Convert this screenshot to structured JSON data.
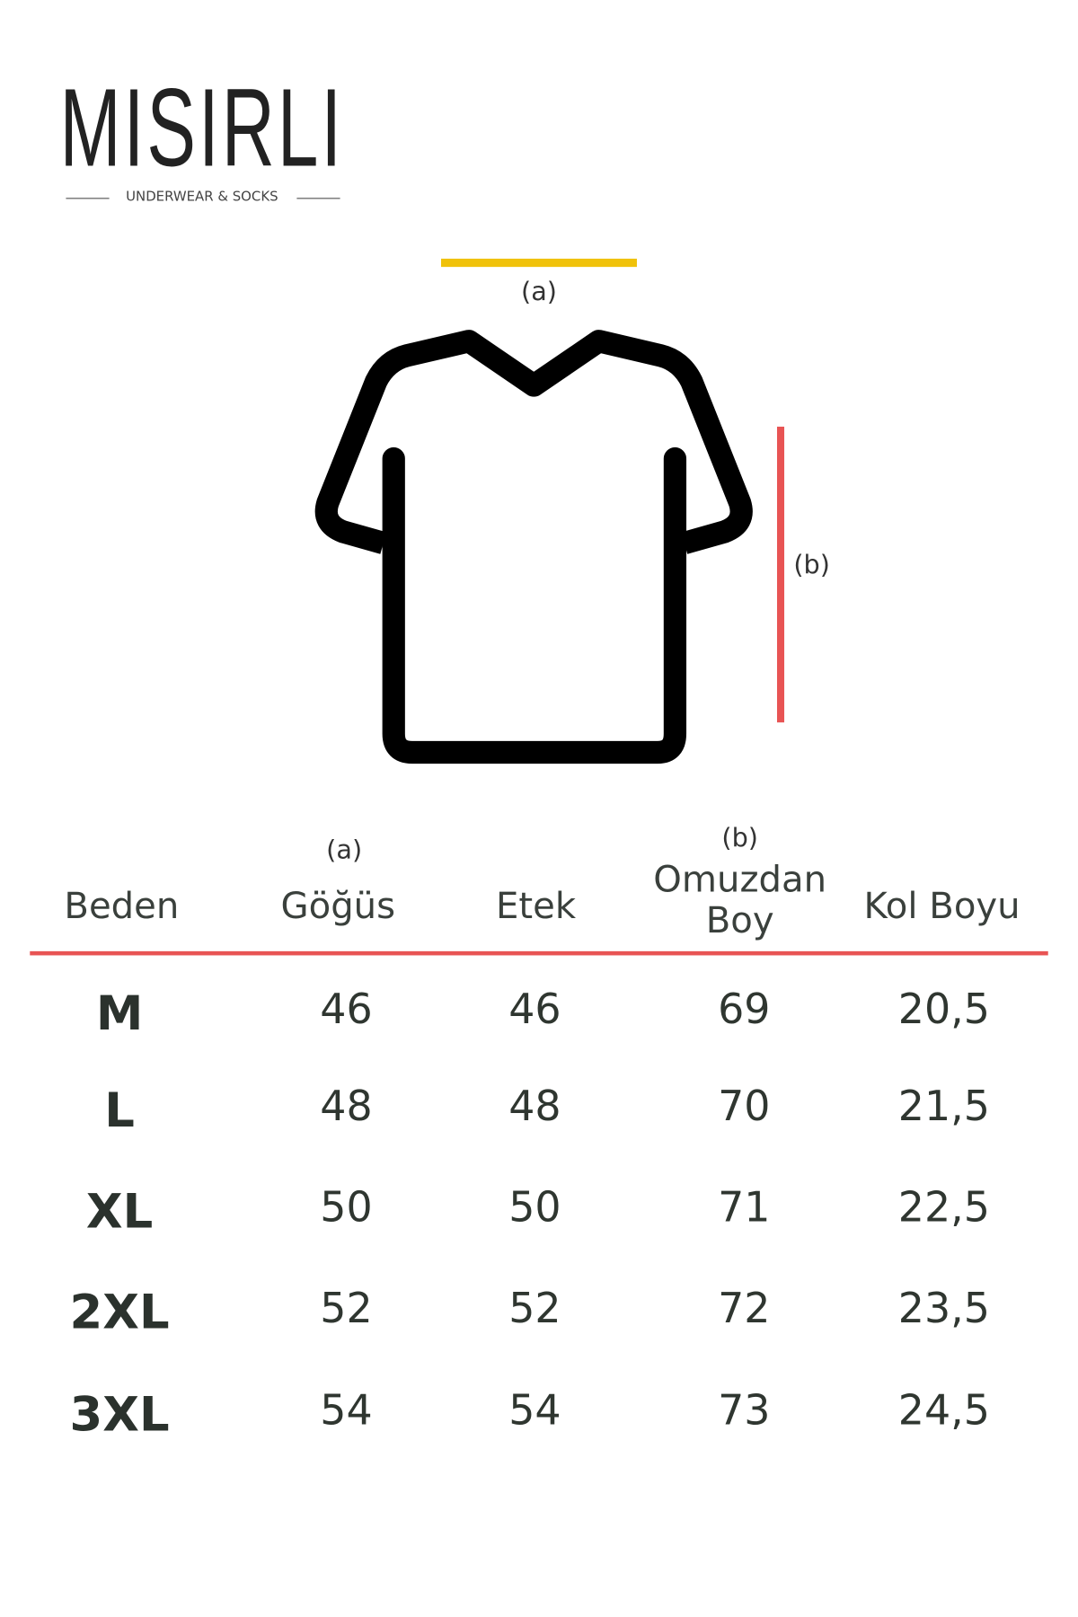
{
  "brand": {
    "name": "MISIRLI",
    "tagline": "UNDERWEAR & SOCKS"
  },
  "diagram": {
    "label_a": "(a)",
    "label_b": "(b)",
    "colors": {
      "a": "#f0c20a",
      "b": "#e85454",
      "shirt": "#000000"
    }
  },
  "table": {
    "header_notes": {
      "gogus": "(a)",
      "omuzdan_boy": "(b)"
    },
    "columns": [
      "Beden",
      "Göğüs",
      "Etek",
      "Omuzdan Boy",
      "Kol Boyu"
    ],
    "divider_color": "#e85454",
    "rows": [
      [
        "M",
        "46",
        "46",
        "69",
        "20,5"
      ],
      [
        "L",
        "48",
        "48",
        "70",
        "21,5"
      ],
      [
        "XL",
        "50",
        "50",
        "71",
        "22,5"
      ],
      [
        "2XL",
        "52",
        "52",
        "72",
        "23,5"
      ],
      [
        "3XL",
        "54",
        "54",
        "73",
        "24,5"
      ]
    ]
  }
}
